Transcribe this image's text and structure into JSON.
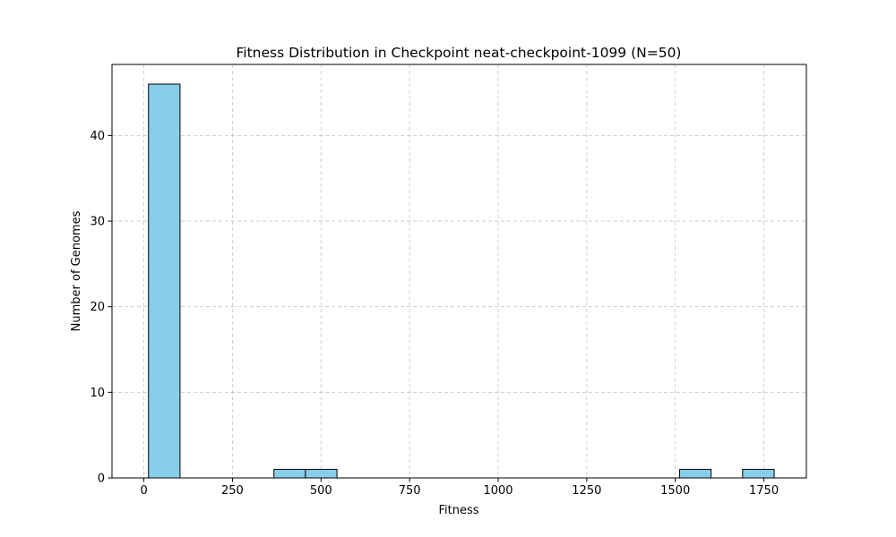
{
  "chart_data": {
    "type": "bar",
    "title": "Fitness Distribution in Checkpoint neat-checkpoint-1099 (N=50)",
    "xlabel": "Fitness",
    "ylabel": "Number of Genomes",
    "xlim": [
      -90,
      1870
    ],
    "ylim": [
      0,
      48.3
    ],
    "xticks": [
      0,
      250,
      500,
      750,
      1000,
      1250,
      1500,
      1750
    ],
    "yticks": [
      0,
      10,
      20,
      30,
      40
    ],
    "grid": true,
    "bins": [
      {
        "x0": 13,
        "x1": 102,
        "count": 46
      },
      {
        "x0": 367,
        "x1": 456,
        "count": 1
      },
      {
        "x0": 456,
        "x1": 545,
        "count": 1
      },
      {
        "x0": 1512,
        "x1": 1601,
        "count": 1
      },
      {
        "x0": 1690,
        "x1": 1779,
        "count": 1
      }
    ],
    "bar_color": "#87ceeb",
    "edge_color": "#000000",
    "grid_color": "#b0b0b0"
  }
}
